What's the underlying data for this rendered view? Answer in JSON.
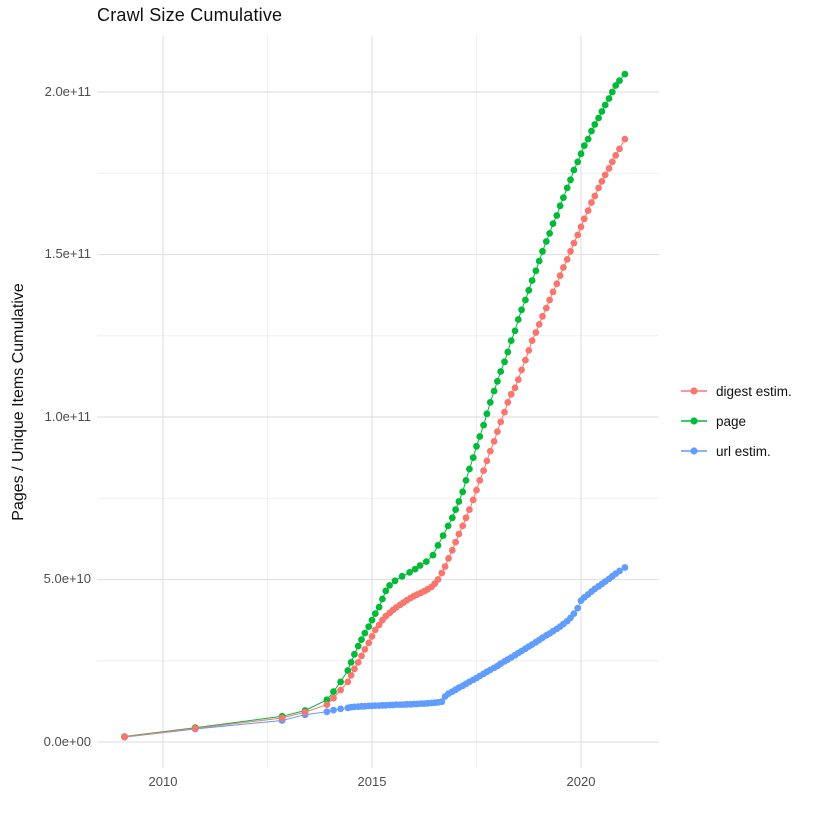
{
  "chart_data": {
    "type": "scatter",
    "title": "Crawl Size Cumulative",
    "ylabel": "Pages / Unique Items Cumulative",
    "xlabel": "",
    "value_unit": "billions (1e9) of pages / unique items",
    "x_tick_labels": [
      "2010",
      "2015",
      "2020"
    ],
    "x_tick_values": [
      2010,
      2015,
      2020
    ],
    "x_minor_values": [
      2012.5,
      2017.5
    ],
    "y_tick_labels": [
      "2.0e+11",
      "1.5e+11",
      "1.0e+11",
      "5.0e+10",
      "0.0e+00"
    ],
    "y_tick_values": [
      200,
      150,
      100,
      50,
      0
    ],
    "y_minor_values": [
      25,
      75,
      125,
      175
    ],
    "xlim": [
      2008.5,
      2021.9
    ],
    "ylim_e9": [
      -10,
      216
    ],
    "grid": "on",
    "grid_major_color": "#e2e2e2",
    "grid_minor_color": "#efefef",
    "legend_position": "right",
    "draw_order": [
      "url",
      "page",
      "digest"
    ],
    "series": [
      {
        "id": "digest",
        "name": "digest estim.",
        "color": "#F8766D",
        "points": [
          [
            2009.08,
            1.6
          ],
          [
            2010.77,
            4.2
          ],
          [
            2012.85,
            7.4
          ],
          [
            2013.4,
            9.2
          ],
          [
            2013.92,
            11.5
          ],
          [
            2014.08,
            13.5
          ],
          [
            2014.25,
            16
          ],
          [
            2014.42,
            18.5
          ],
          [
            2014.5,
            20.5
          ],
          [
            2014.58,
            22.5
          ],
          [
            2014.67,
            24.5
          ],
          [
            2014.75,
            26.5
          ],
          [
            2014.83,
            28.5
          ],
          [
            2014.92,
            30.5
          ],
          [
            2015.0,
            32.5
          ],
          [
            2015.08,
            34.5
          ],
          [
            2015.17,
            36
          ],
          [
            2015.25,
            37.5
          ],
          [
            2015.33,
            38.7
          ],
          [
            2015.42,
            39.7
          ],
          [
            2015.5,
            40.6
          ],
          [
            2015.58,
            41.4
          ],
          [
            2015.67,
            42.2
          ],
          [
            2015.75,
            42.9
          ],
          [
            2015.83,
            43.6
          ],
          [
            2015.92,
            44.3
          ],
          [
            2016.0,
            44.9
          ],
          [
            2016.08,
            45.4
          ],
          [
            2016.17,
            45.9
          ],
          [
            2016.25,
            46.4
          ],
          [
            2016.33,
            47
          ],
          [
            2016.42,
            47.7
          ],
          [
            2016.5,
            48.7
          ],
          [
            2016.58,
            50
          ],
          [
            2016.67,
            52
          ],
          [
            2016.75,
            54
          ],
          [
            2016.83,
            56.5
          ],
          [
            2016.92,
            59
          ],
          [
            2017.0,
            61.5
          ],
          [
            2017.08,
            64
          ],
          [
            2017.17,
            66.5
          ],
          [
            2017.25,
            69
          ],
          [
            2017.33,
            71.5
          ],
          [
            2017.42,
            74.5
          ],
          [
            2017.5,
            77.5
          ],
          [
            2017.58,
            80.5
          ],
          [
            2017.67,
            83.5
          ],
          [
            2017.75,
            86.5
          ],
          [
            2017.83,
            89.5
          ],
          [
            2017.92,
            92.5
          ],
          [
            2018.0,
            95.5
          ],
          [
            2018.08,
            98.5
          ],
          [
            2018.17,
            101.5
          ],
          [
            2018.25,
            104.5
          ],
          [
            2018.33,
            107
          ],
          [
            2018.42,
            109
          ],
          [
            2018.5,
            111.5
          ],
          [
            2018.58,
            114.5
          ],
          [
            2018.67,
            117.5
          ],
          [
            2018.75,
            120.5
          ],
          [
            2018.83,
            123.5
          ],
          [
            2018.92,
            126
          ],
          [
            2019.0,
            128.5
          ],
          [
            2019.08,
            131
          ],
          [
            2019.17,
            133.5
          ],
          [
            2019.25,
            136
          ],
          [
            2019.33,
            138.5
          ],
          [
            2019.42,
            141
          ],
          [
            2019.5,
            143.5
          ],
          [
            2019.58,
            146
          ],
          [
            2019.67,
            148.5
          ],
          [
            2019.75,
            151
          ],
          [
            2019.83,
            153.5
          ],
          [
            2019.92,
            156
          ],
          [
            2020.0,
            158.5
          ],
          [
            2020.08,
            161
          ],
          [
            2020.17,
            163.5
          ],
          [
            2020.25,
            166
          ],
          [
            2020.33,
            168
          ],
          [
            2020.42,
            170.5
          ],
          [
            2020.5,
            172.5
          ],
          [
            2020.58,
            174.5
          ],
          [
            2020.67,
            176.5
          ],
          [
            2020.75,
            178.5
          ],
          [
            2020.83,
            180.5
          ],
          [
            2020.92,
            182.5
          ],
          [
            2021.05,
            185.5
          ]
        ]
      },
      {
        "id": "page",
        "name": "page",
        "color": "#00BA38",
        "points": [
          [
            2009.08,
            1.7
          ],
          [
            2010.77,
            4.4
          ],
          [
            2012.85,
            7.9
          ],
          [
            2013.4,
            9.7
          ],
          [
            2013.92,
            13
          ],
          [
            2014.08,
            15.5
          ],
          [
            2014.25,
            18.5
          ],
          [
            2014.42,
            22
          ],
          [
            2014.5,
            24.5
          ],
          [
            2014.58,
            27
          ],
          [
            2014.67,
            29.5
          ],
          [
            2014.75,
            31.5
          ],
          [
            2014.83,
            33.5
          ],
          [
            2014.92,
            35.5
          ],
          [
            2015.0,
            37.5
          ],
          [
            2015.08,
            39.5
          ],
          [
            2015.17,
            41.5
          ],
          [
            2015.25,
            44
          ],
          [
            2015.33,
            46.5
          ],
          [
            2015.42,
            48.2
          ],
          [
            2015.55,
            49.6
          ],
          [
            2015.72,
            51
          ],
          [
            2015.9,
            52.2
          ],
          [
            2016.03,
            53.2
          ],
          [
            2016.15,
            54.3
          ],
          [
            2016.3,
            55.5
          ],
          [
            2016.46,
            57.5
          ],
          [
            2016.58,
            60.5
          ],
          [
            2016.7,
            63.5
          ],
          [
            2016.82,
            66.5
          ],
          [
            2016.92,
            69
          ],
          [
            2017.0,
            71.5
          ],
          [
            2017.08,
            74
          ],
          [
            2017.17,
            77
          ],
          [
            2017.25,
            80.5
          ],
          [
            2017.33,
            84
          ],
          [
            2017.42,
            87.5
          ],
          [
            2017.5,
            91
          ],
          [
            2017.58,
            94
          ],
          [
            2017.67,
            97.5
          ],
          [
            2017.75,
            101
          ],
          [
            2017.83,
            104.5
          ],
          [
            2017.92,
            108
          ],
          [
            2018.0,
            111
          ],
          [
            2018.08,
            114
          ],
          [
            2018.17,
            117
          ],
          [
            2018.25,
            120
          ],
          [
            2018.33,
            123.5
          ],
          [
            2018.42,
            126.5
          ],
          [
            2018.5,
            130
          ],
          [
            2018.58,
            133
          ],
          [
            2018.67,
            136
          ],
          [
            2018.75,
            139
          ],
          [
            2018.83,
            142
          ],
          [
            2018.92,
            145
          ],
          [
            2019.0,
            148
          ],
          [
            2019.08,
            151
          ],
          [
            2019.17,
            154
          ],
          [
            2019.25,
            156.5
          ],
          [
            2019.33,
            159.5
          ],
          [
            2019.42,
            162
          ],
          [
            2019.5,
            165
          ],
          [
            2019.58,
            167.5
          ],
          [
            2019.67,
            170.5
          ],
          [
            2019.75,
            173
          ],
          [
            2019.83,
            176
          ],
          [
            2019.92,
            178.5
          ],
          [
            2020.0,
            181
          ],
          [
            2020.08,
            183.5
          ],
          [
            2020.17,
            185.5
          ],
          [
            2020.25,
            188
          ],
          [
            2020.33,
            190
          ],
          [
            2020.42,
            192
          ],
          [
            2020.5,
            194
          ],
          [
            2020.58,
            196
          ],
          [
            2020.67,
            198
          ],
          [
            2020.75,
            200
          ],
          [
            2020.83,
            202
          ],
          [
            2020.92,
            203.5
          ],
          [
            2021.05,
            205.5
          ]
        ]
      },
      {
        "id": "url",
        "name": "url estim.",
        "color": "#619CFF",
        "points": [
          [
            2009.08,
            1.5
          ],
          [
            2010.77,
            4.0
          ],
          [
            2012.85,
            6.6
          ],
          [
            2013.4,
            8.4
          ],
          [
            2013.92,
            9.3
          ],
          [
            2014.08,
            9.8
          ],
          [
            2014.25,
            10.2
          ],
          [
            2014.42,
            10.5
          ],
          [
            2014.5,
            10.7
          ],
          [
            2014.58,
            10.8
          ],
          [
            2014.67,
            10.9
          ],
          [
            2014.75,
            11
          ],
          [
            2014.83,
            11
          ],
          [
            2014.92,
            11.1
          ],
          [
            2015.0,
            11.1
          ],
          [
            2015.08,
            11.2
          ],
          [
            2015.17,
            11.2
          ],
          [
            2015.25,
            11.3
          ],
          [
            2015.33,
            11.3
          ],
          [
            2015.42,
            11.4
          ],
          [
            2015.5,
            11.4
          ],
          [
            2015.58,
            11.5
          ],
          [
            2015.67,
            11.5
          ],
          [
            2015.75,
            11.5
          ],
          [
            2015.83,
            11.6
          ],
          [
            2015.92,
            11.6
          ],
          [
            2016.0,
            11.7
          ],
          [
            2016.08,
            11.7
          ],
          [
            2016.17,
            11.8
          ],
          [
            2016.25,
            11.8
          ],
          [
            2016.33,
            11.9
          ],
          [
            2016.42,
            12
          ],
          [
            2016.5,
            12.1
          ],
          [
            2016.58,
            12.2
          ],
          [
            2016.67,
            12.4
          ],
          [
            2016.75,
            14
          ],
          [
            2016.83,
            14.9
          ],
          [
            2016.92,
            15.5
          ],
          [
            2017.0,
            16.1
          ],
          [
            2017.08,
            16.7
          ],
          [
            2017.17,
            17.3
          ],
          [
            2017.25,
            17.9
          ],
          [
            2017.33,
            18.5
          ],
          [
            2017.42,
            19.1
          ],
          [
            2017.5,
            19.7
          ],
          [
            2017.58,
            20.3
          ],
          [
            2017.67,
            21
          ],
          [
            2017.75,
            21.6
          ],
          [
            2017.83,
            22.2
          ],
          [
            2017.92,
            22.8
          ],
          [
            2018.0,
            23.4
          ],
          [
            2018.08,
            24.1
          ],
          [
            2018.17,
            24.8
          ],
          [
            2018.25,
            25.4
          ],
          [
            2018.33,
            26
          ],
          [
            2018.42,
            26.7
          ],
          [
            2018.5,
            27.4
          ],
          [
            2018.58,
            28
          ],
          [
            2018.67,
            28.7
          ],
          [
            2018.75,
            29.4
          ],
          [
            2018.83,
            30
          ],
          [
            2018.92,
            30.7
          ],
          [
            2019.0,
            31.4
          ],
          [
            2019.08,
            32.1
          ],
          [
            2019.17,
            32.8
          ],
          [
            2019.25,
            33.4
          ],
          [
            2019.33,
            34.1
          ],
          [
            2019.42,
            34.8
          ],
          [
            2019.5,
            35.5
          ],
          [
            2019.58,
            36.3
          ],
          [
            2019.67,
            37.2
          ],
          [
            2019.75,
            38.2
          ],
          [
            2019.83,
            39.5
          ],
          [
            2019.92,
            41.2
          ],
          [
            2020.0,
            43.5
          ],
          [
            2020.08,
            44.5
          ],
          [
            2020.17,
            45.4
          ],
          [
            2020.25,
            46.3
          ],
          [
            2020.33,
            47.1
          ],
          [
            2020.42,
            47.9
          ],
          [
            2020.5,
            48.6
          ],
          [
            2020.58,
            49.4
          ],
          [
            2020.67,
            50.2
          ],
          [
            2020.75,
            51
          ],
          [
            2020.83,
            51.8
          ],
          [
            2020.92,
            52.6
          ],
          [
            2021.05,
            53.7
          ]
        ]
      }
    ]
  }
}
